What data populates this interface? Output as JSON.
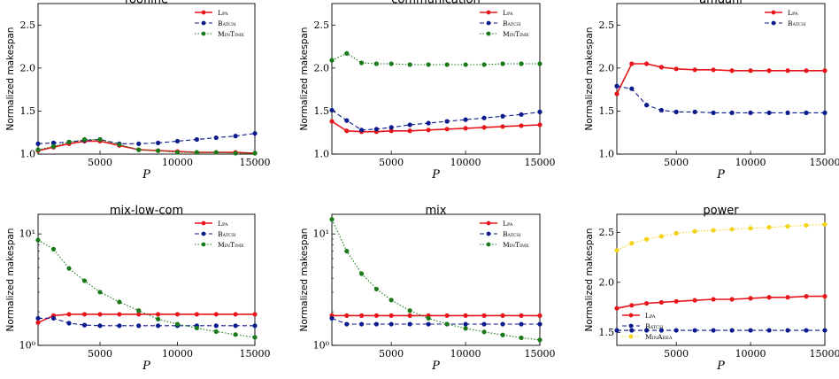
{
  "colors": {
    "Lpa": "#e8161c",
    "Batch": "#0b1a8c",
    "MinTime": "#1a7a1a",
    "MinArea": "#f3d31a"
  },
  "chart_data": [
    {
      "type": "line",
      "title": "roofline",
      "ylabel": "Normalized makespan",
      "xlabel": "P",
      "scale": "linear",
      "xlim": [
        1000,
        15000
      ],
      "ylim": [
        1.0,
        2.75
      ],
      "yticks": [
        1.0,
        1.5,
        2.0,
        2.5
      ],
      "xticks": [
        5000,
        10000,
        15000
      ],
      "legend": "top-right",
      "x": [
        1000,
        2000,
        3000,
        4000,
        5000,
        6250,
        7500,
        8750,
        10000,
        11250,
        12500,
        13750,
        15000
      ],
      "series": [
        {
          "name": "Lpa",
          "values": [
            1.04,
            1.08,
            1.12,
            1.15,
            1.15,
            1.1,
            1.05,
            1.04,
            1.03,
            1.02,
            1.02,
            1.02,
            1.01
          ]
        },
        {
          "name": "Batch",
          "values": [
            1.12,
            1.13,
            1.14,
            1.16,
            1.17,
            1.12,
            1.12,
            1.13,
            1.15,
            1.17,
            1.19,
            1.21,
            1.24
          ]
        },
        {
          "name": "MinTime",
          "values": [
            1.05,
            1.09,
            1.14,
            1.17,
            1.17,
            1.11,
            1.05,
            1.04,
            1.02,
            1.02,
            1.02,
            1.01,
            1.01
          ]
        }
      ]
    },
    {
      "type": "line",
      "title": "communication",
      "ylabel": "Normalized makespan",
      "xlabel": "P",
      "scale": "linear",
      "xlim": [
        1000,
        15000
      ],
      "ylim": [
        1.0,
        2.75
      ],
      "yticks": [
        1.0,
        1.5,
        2.0,
        2.5
      ],
      "xticks": [
        5000,
        10000,
        15000
      ],
      "legend": "top-right",
      "x": [
        1000,
        2000,
        3000,
        4000,
        5000,
        6250,
        7500,
        8750,
        10000,
        11250,
        12500,
        13750,
        15000
      ],
      "series": [
        {
          "name": "Lpa",
          "values": [
            1.38,
            1.27,
            1.26,
            1.26,
            1.27,
            1.27,
            1.28,
            1.29,
            1.3,
            1.31,
            1.32,
            1.33,
            1.34
          ]
        },
        {
          "name": "Batch",
          "values": [
            1.51,
            1.39,
            1.28,
            1.29,
            1.31,
            1.34,
            1.36,
            1.38,
            1.4,
            1.42,
            1.44,
            1.46,
            1.49
          ]
        },
        {
          "name": "MinTime",
          "values": [
            2.09,
            2.17,
            2.06,
            2.05,
            2.05,
            2.04,
            2.04,
            2.04,
            2.04,
            2.04,
            2.05,
            2.05,
            2.05
          ]
        }
      ]
    },
    {
      "type": "line",
      "title": "amdahl",
      "ylabel": "Normalized makespan",
      "xlabel": "P",
      "scale": "linear",
      "xlim": [
        1000,
        15000
      ],
      "ylim": [
        1.0,
        2.75
      ],
      "yticks": [
        1.0,
        1.5,
        2.0,
        2.5
      ],
      "xticks": [
        5000,
        10000,
        15000
      ],
      "legend": "top-right",
      "x": [
        1000,
        2000,
        3000,
        4000,
        5000,
        6250,
        7500,
        8750,
        10000,
        11250,
        12500,
        13750,
        15000
      ],
      "series": [
        {
          "name": "Lpa",
          "values": [
            1.7,
            2.05,
            2.05,
            2.01,
            1.99,
            1.98,
            1.98,
            1.97,
            1.97,
            1.97,
            1.97,
            1.97,
            1.97
          ]
        },
        {
          "name": "Batch",
          "values": [
            1.79,
            1.76,
            1.57,
            1.51,
            1.49,
            1.49,
            1.48,
            1.48,
            1.48,
            1.48,
            1.48,
            1.48,
            1.48
          ]
        }
      ]
    },
    {
      "type": "line",
      "title": "mix-low-com",
      "ylabel": "Normalized makespan",
      "xlabel": "P",
      "scale": "log",
      "xlim": [
        1000,
        15000
      ],
      "ylim": [
        1.0,
        15.0
      ],
      "yticks": [
        1,
        10
      ],
      "yticklabels": [
        "10⁰",
        "10¹"
      ],
      "xticks": [
        5000,
        10000,
        15000
      ],
      "legend": "top-right",
      "x": [
        1000,
        2000,
        3000,
        4000,
        5000,
        6250,
        7500,
        8750,
        10000,
        11250,
        12500,
        13750,
        15000
      ],
      "series": [
        {
          "name": "Lpa",
          "values": [
            1.6,
            1.85,
            1.9,
            1.9,
            1.9,
            1.9,
            1.9,
            1.9,
            1.9,
            1.9,
            1.9,
            1.9,
            1.9
          ]
        },
        {
          "name": "Batch",
          "values": [
            1.75,
            1.75,
            1.58,
            1.52,
            1.5,
            1.5,
            1.5,
            1.5,
            1.5,
            1.5,
            1.5,
            1.5,
            1.5
          ]
        },
        {
          "name": "MinTime",
          "values": [
            8.8,
            7.3,
            4.9,
            3.8,
            3.0,
            2.45,
            2.05,
            1.72,
            1.55,
            1.43,
            1.33,
            1.25,
            1.18
          ]
        }
      ]
    },
    {
      "type": "line",
      "title": "mix",
      "ylabel": "Normalized makespan",
      "xlabel": "P",
      "scale": "log",
      "xlim": [
        1000,
        15000
      ],
      "ylim": [
        1.0,
        15.0
      ],
      "yticks": [
        1,
        10
      ],
      "yticklabels": [
        "10⁰",
        "10¹"
      ],
      "xticks": [
        5000,
        10000,
        15000
      ],
      "legend": "top-right",
      "x": [
        1000,
        2000,
        3000,
        4000,
        5000,
        6250,
        7500,
        8750,
        10000,
        11250,
        12500,
        13750,
        15000
      ],
      "series": [
        {
          "name": "Lpa",
          "values": [
            1.85,
            1.85,
            1.85,
            1.85,
            1.85,
            1.85,
            1.85,
            1.85,
            1.85,
            1.85,
            1.85,
            1.85,
            1.85
          ]
        },
        {
          "name": "Batch",
          "values": [
            1.75,
            1.55,
            1.55,
            1.55,
            1.55,
            1.55,
            1.55,
            1.55,
            1.55,
            1.55,
            1.55,
            1.55,
            1.55
          ]
        },
        {
          "name": "MinTime",
          "values": [
            13.5,
            7.0,
            4.4,
            3.2,
            2.55,
            2.05,
            1.75,
            1.55,
            1.42,
            1.32,
            1.24,
            1.17,
            1.12
          ]
        }
      ]
    },
    {
      "type": "line",
      "title": "power",
      "ylabel": "Normalized makespan",
      "xlabel": "P",
      "scale": "linear",
      "xlim": [
        1000,
        15000
      ],
      "ylim": [
        1.37,
        2.68
      ],
      "yticks": [
        1.5,
        2.0,
        2.5
      ],
      "xticks": [
        5000,
        10000,
        15000
      ],
      "legend": "bottom-left",
      "x": [
        1000,
        2000,
        3000,
        4000,
        5000,
        6250,
        7500,
        8750,
        10000,
        11250,
        12500,
        13750,
        15000
      ],
      "series": [
        {
          "name": "Lpa",
          "values": [
            1.74,
            1.77,
            1.79,
            1.8,
            1.81,
            1.82,
            1.83,
            1.83,
            1.84,
            1.85,
            1.85,
            1.86,
            1.86
          ]
        },
        {
          "name": "Batch",
          "values": [
            1.52,
            1.52,
            1.52,
            1.52,
            1.52,
            1.52,
            1.52,
            1.52,
            1.52,
            1.52,
            1.52,
            1.52,
            1.52
          ]
        },
        {
          "name": "MinArea",
          "values": [
            2.32,
            2.39,
            2.43,
            2.46,
            2.49,
            2.51,
            2.52,
            2.53,
            2.54,
            2.55,
            2.56,
            2.57,
            2.58
          ]
        }
      ]
    }
  ]
}
